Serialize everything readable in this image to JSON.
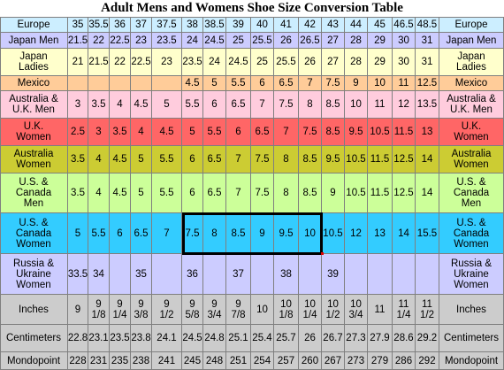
{
  "title": "Adult Mens and Womens Shoe Size Conversion Table",
  "rows": [
    {
      "key": "europe",
      "label": "Europe",
      "right_label": "Europe",
      "color": "#cceeff",
      "values": [
        "35",
        "35.5",
        "36",
        "37",
        "37.5",
        "38",
        "38.5",
        "39",
        "40",
        "41",
        "42",
        "43",
        "44",
        "45",
        "46.5",
        "48.5"
      ]
    },
    {
      "key": "japan-men",
      "label": "Japan Men",
      "right_label": "Japan Men",
      "color": "#ccccff",
      "values": [
        "21.5",
        "22",
        "22.5",
        "23",
        "23.5",
        "24",
        "24.5",
        "25",
        "25.5",
        "26",
        "26.5",
        "27",
        "28",
        "29",
        "30",
        "31"
      ]
    },
    {
      "key": "japan-ladies",
      "label": "Japan\nLadies",
      "right_label": "Japan\nLadies",
      "color": "#ffffcc",
      "values": [
        "21",
        "21.5",
        "22",
        "22.5",
        "23",
        "23.5",
        "24",
        "24.5",
        "25",
        "25.5",
        "26",
        "27",
        "28",
        "29",
        "30",
        "31"
      ]
    },
    {
      "key": "mexico",
      "label": "Mexico",
      "right_label": "Mexico",
      "color": "#ffcc99",
      "values": [
        "",
        "",
        "",
        "",
        "",
        "4.5",
        "5",
        "5.5",
        "6",
        "6.5",
        "7",
        "7.5",
        "9",
        "10",
        "11",
        "12.5"
      ]
    },
    {
      "key": "australia-uk-men",
      "label": "Australia &\nU.K. Men",
      "right_label": "Australia &\nU.K. Men",
      "color": "#ffccdd",
      "values": [
        "3",
        "3.5",
        "4",
        "4.5",
        "5",
        "5.5",
        "6",
        "6.5",
        "7",
        "7.5",
        "8",
        "8.5",
        "10",
        "11",
        "12",
        "13.5"
      ]
    },
    {
      "key": "uk-women",
      "label": "U.K.\nWomen",
      "right_label": "U.K.\nWomen",
      "color": "#ff6666",
      "values": [
        "2.5",
        "3",
        "3.5",
        "4",
        "4.5",
        "5",
        "5.5",
        "6",
        "6.5",
        "7",
        "7.5",
        "8.5",
        "9.5",
        "10.5",
        "11.5",
        "13"
      ]
    },
    {
      "key": "australia-women",
      "label": "Australia\nWomen",
      "right_label": "Australia\nWomen",
      "color": "#cccc33",
      "values": [
        "3.5",
        "4",
        "4.5",
        "5",
        "5.5",
        "6",
        "6.5",
        "7",
        "7.5",
        "8",
        "8.5",
        "9.5",
        "10.5",
        "11.5",
        "12.5",
        "14"
      ]
    },
    {
      "key": "us-canada-men",
      "label": "U.S. &\nCanada\nMen",
      "right_label": "U.S. &\nCanada\nMen",
      "color": "#ccff99",
      "values": [
        "3.5",
        "4",
        "4.5",
        "5",
        "5.5",
        "6",
        "6.5",
        "7",
        "7.5",
        "8",
        "8.5",
        "9",
        "10.5",
        "11.5",
        "12.5",
        "14"
      ]
    },
    {
      "key": "us-canada-women",
      "label": "U.S. &\nCanada\nWomen",
      "right_label": "U.S. &\nCanada\nWomen",
      "color": "#33ccff",
      "values": [
        "5",
        "5.5",
        "6",
        "6.5",
        "7",
        "7.5",
        "8",
        "8.5",
        "9",
        "9.5",
        "10",
        "10.5",
        "12",
        "13",
        "14",
        "15.5"
      ]
    },
    {
      "key": "russia-ukraine-women",
      "label": "Russia &\nUkraine\nWomen",
      "right_label": "Russia &\nUkraine\nWomen",
      "color": "#ccccff",
      "values": [
        "33.5",
        "34",
        "",
        "35",
        "",
        "36",
        "",
        "37",
        "",
        "38",
        "",
        "39",
        "",
        "",
        "",
        ""
      ]
    },
    {
      "key": "inches",
      "label": "Inches",
      "right_label": "Inches",
      "color": "#cccccc",
      "values": [
        "9",
        "9\n1/8",
        "9\n1/4",
        "9\n3/8",
        "9\n1/2",
        "9\n5/8",
        "9\n3/4",
        "9\n7/8",
        "10",
        "10\n1/8",
        "10\n1/4",
        "10\n1/2",
        "10\n3/4",
        "11",
        "11\n1/4",
        "11\n1/2"
      ]
    },
    {
      "key": "centimeters",
      "label": "Centimeters",
      "right_label": "Centimeters",
      "color": "#cccccc",
      "values": [
        "22.8",
        "23.1",
        "23.5",
        "23.8",
        "24.1",
        "24.5",
        "24.8",
        "25.1",
        "25.4",
        "25.7",
        "26",
        "26.7",
        "27.3",
        "27.9",
        "28.6",
        "29.2"
      ]
    },
    {
      "key": "mondopoint",
      "label": "Mondopoint",
      "right_label": "Mondopoint",
      "color": "#cccccc",
      "values": [
        "228",
        "231",
        "235",
        "238",
        "241",
        "245",
        "248",
        "251",
        "254",
        "257",
        "260",
        "267",
        "273",
        "279",
        "286",
        "292"
      ]
    }
  ]
}
